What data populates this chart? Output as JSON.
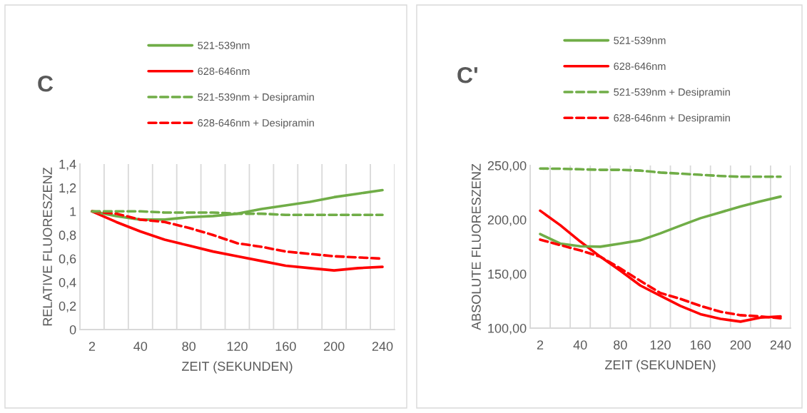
{
  "chart_data": [
    {
      "type": "line",
      "title": "C",
      "xlabel": "ZEIT (SEKUNDEN)",
      "ylabel": "RELATIVE FLUORESZENZ",
      "categories": [
        "2",
        null,
        "40",
        null,
        "80",
        null,
        "120",
        null,
        "160",
        null,
        "200",
        null,
        "240"
      ],
      "ylim": [
        0,
        1.4
      ],
      "yticks": [
        0,
        {
          "value": 0.2,
          "label": "0,2"
        },
        {
          "value": 0.4,
          "label": "0,4"
        },
        {
          "value": 0.6,
          "label": "0,6"
        },
        {
          "value": 0.8,
          "label": "0,8"
        },
        1,
        {
          "value": 1.2,
          "label": "1,2"
        },
        {
          "value": 1.4,
          "label": "1,4"
        }
      ],
      "grid": "x",
      "legend": "top",
      "marker": "none",
      "series": [
        {
          "name": "521-539nm",
          "color": "#70ad47",
          "line_style": "solid",
          "values": [
            1.0,
            0.96,
            0.93,
            0.93,
            0.95,
            0.96,
            0.98,
            1.02,
            1.05,
            1.08,
            1.12,
            1.15,
            1.18
          ]
        },
        {
          "name": "628-646nm",
          "color": "#ff0000",
          "line_style": "solid",
          "values": [
            1.0,
            0.91,
            0.83,
            0.76,
            0.71,
            0.66,
            0.62,
            0.58,
            0.54,
            0.52,
            0.5,
            0.52,
            0.53
          ]
        },
        {
          "name": "521-539nm + Desipramin",
          "color": "#70ad47",
          "line_style": "dashed",
          "values": [
            1.0,
            1.0,
            1.0,
            0.99,
            0.99,
            0.99,
            0.98,
            0.98,
            0.97,
            0.97,
            0.97,
            0.97,
            0.97
          ]
        },
        {
          "name": "628-646nm + Desipramin",
          "color": "#ff0000",
          "line_style": "dashed",
          "values": [
            1.0,
            0.98,
            0.93,
            0.91,
            0.86,
            0.8,
            0.73,
            0.7,
            0.66,
            0.64,
            0.62,
            0.61,
            0.6
          ]
        }
      ]
    },
    {
      "type": "line",
      "title": "C'",
      "xlabel": "ZEIT (SEKUNDEN)",
      "ylabel": "ABSOLUTE FLUORESZENZ",
      "categories": [
        "2",
        null,
        "40",
        null,
        "80",
        null,
        "120",
        null,
        "160",
        null,
        "200",
        null,
        "240"
      ],
      "ylim": [
        100,
        250
      ],
      "yticks": [
        {
          "value": 100,
          "label": "100,00"
        },
        {
          "value": 150,
          "label": "150,00"
        },
        {
          "value": 200,
          "label": "200,00"
        },
        {
          "value": 250,
          "label": "250,00"
        }
      ],
      "grid": "x",
      "legend": "top",
      "marker": "none",
      "series": [
        {
          "name": "521-539nm",
          "color": "#70ad47",
          "line_style": "solid",
          "values": [
            186.8,
            178,
            175.5,
            175.1,
            178,
            181,
            187.4,
            194.5,
            201.4,
            206.8,
            212.2,
            217,
            221.3
          ]
        },
        {
          "name": "628-646nm",
          "color": "#ff0000",
          "line_style": "solid",
          "values": [
            208.3,
            195,
            179.9,
            165.9,
            152.9,
            139.3,
            129.8,
            120.5,
            112.9,
            108.6,
            106,
            109.7,
            110.8
          ]
        },
        {
          "name": "521-539nm + Desipramin",
          "color": "#70ad47",
          "line_style": "dashed",
          "values": [
            247.2,
            247,
            246.5,
            246,
            246,
            245.3,
            243.5,
            242.5,
            241.4,
            240.3,
            239.6,
            239.6,
            239.6
          ]
        },
        {
          "name": "628-646nm + Desipramin",
          "color": "#ff0000",
          "line_style": "dashed",
          "values": [
            181.6,
            176.6,
            171.7,
            165.9,
            155.1,
            143.6,
            132.4,
            127,
            120.5,
            115.1,
            111.9,
            110.8,
            109.1
          ]
        }
      ]
    }
  ]
}
